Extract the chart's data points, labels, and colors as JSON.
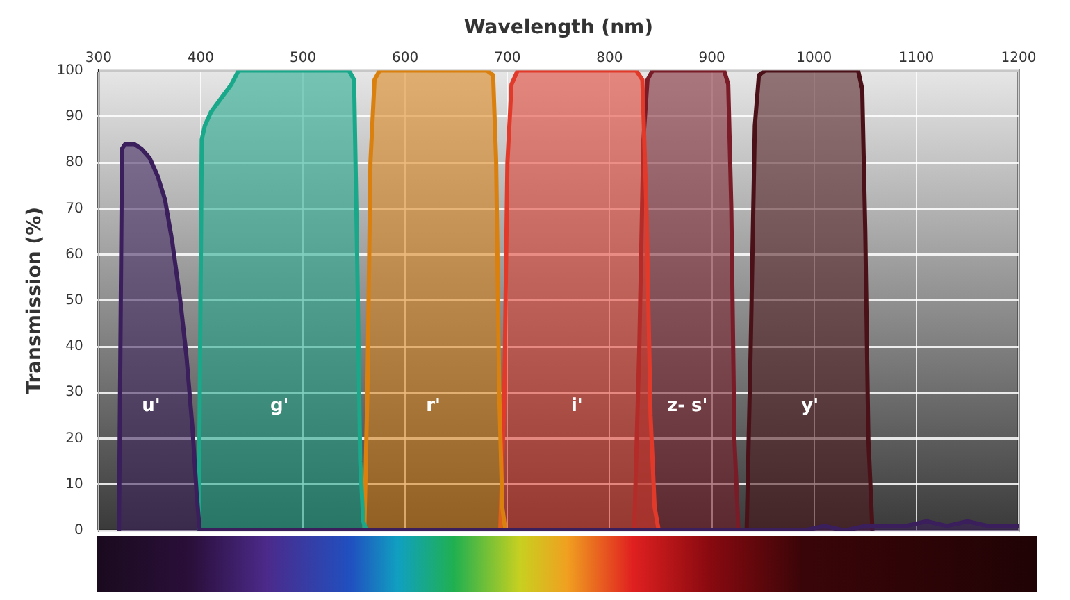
{
  "chart_data": {
    "type": "area",
    "xlabel": "Wavelength (nm)",
    "ylabel": "Transmission (%)",
    "xlim": [
      300,
      1200
    ],
    "ylim": [
      0,
      100
    ],
    "xticks": [
      300,
      400,
      500,
      600,
      700,
      800,
      900,
      1000,
      1100,
      1200
    ],
    "yticks": [
      0,
      10,
      20,
      30,
      40,
      50,
      60,
      70,
      80,
      90,
      100
    ],
    "grid": true,
    "legend": false,
    "series": [
      {
        "name": "u'",
        "color": "#3a1f5c",
        "x": [
          320,
          323,
          326,
          335,
          342,
          350,
          358,
          365,
          372,
          380,
          386,
          392,
          396,
          399,
          410,
          990,
          1010,
          1030,
          1050,
          1070,
          1090,
          1110,
          1130,
          1150,
          1170,
          1190,
          1200
        ],
        "values": [
          0,
          83,
          84,
          84,
          83,
          81,
          77,
          72,
          63,
          50,
          38,
          22,
          8,
          0,
          0,
          0,
          1,
          0,
          1,
          1,
          1,
          2,
          1,
          2,
          1,
          1,
          1
        ]
      },
      {
        "name": "g'",
        "color": "#1aa88a",
        "x": [
          398,
          401,
          404,
          410,
          420,
          430,
          437,
          450,
          500,
          545,
          550,
          553,
          556,
          559,
          562
        ],
        "values": [
          0,
          85,
          88,
          91,
          94,
          97,
          100,
          100,
          100,
          100,
          98,
          60,
          15,
          2,
          0
        ]
      },
      {
        "name": "r'",
        "color": "#d9800f",
        "x": [
          560,
          563,
          566,
          570,
          575,
          620,
          680,
          686,
          689,
          692,
          695,
          698
        ],
        "values": [
          0,
          30,
          80,
          98,
          100,
          100,
          100,
          99,
          80,
          30,
          5,
          0
        ]
      },
      {
        "name": "i'",
        "color": "#e23a2a",
        "x": [
          693,
          697,
          700,
          704,
          710,
          760,
          826,
          832,
          836,
          840,
          844,
          848
        ],
        "values": [
          0,
          30,
          80,
          97,
          100,
          100,
          100,
          98,
          70,
          25,
          5,
          0
        ]
      },
      {
        "name": "z- s'",
        "color": "#7a1c28",
        "x": [
          824,
          829,
          833,
          837,
          842,
          880,
          912,
          916,
          919,
          922,
          926
        ],
        "values": [
          0,
          40,
          85,
          98,
          100,
          100,
          100,
          97,
          70,
          20,
          0
        ]
      },
      {
        "name": "y'",
        "color": "#4a1218",
        "x": [
          934,
          938,
          942,
          946,
          952,
          1000,
          1043,
          1047,
          1050,
          1053,
          1057
        ],
        "values": [
          0,
          40,
          88,
          99,
          100,
          100,
          100,
          96,
          65,
          20,
          0
        ]
      }
    ]
  }
}
